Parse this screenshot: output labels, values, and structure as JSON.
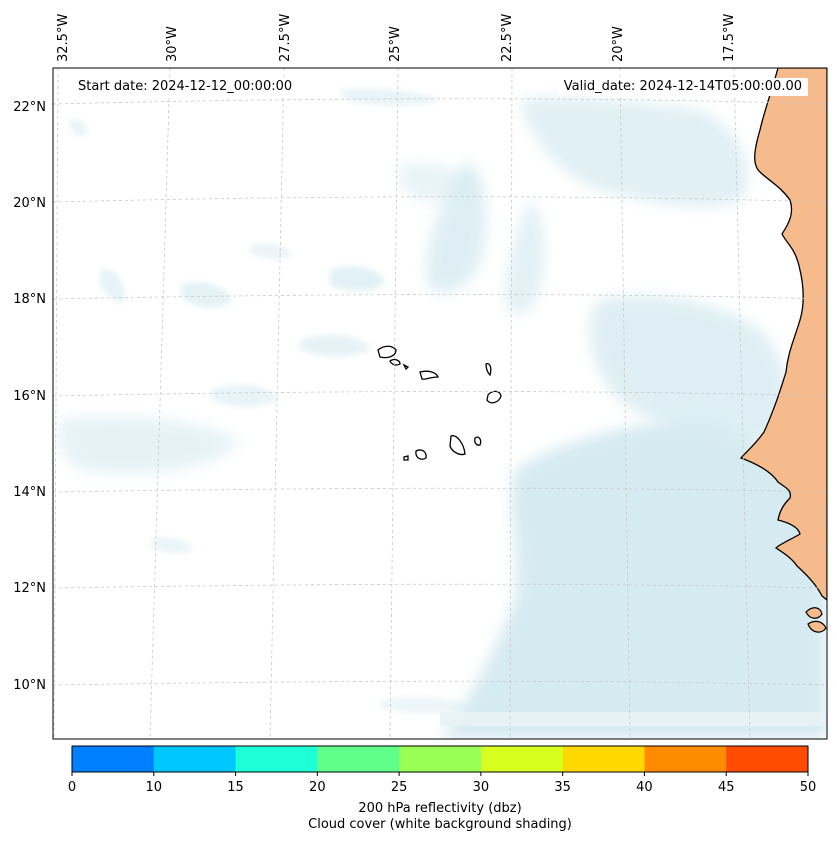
{
  "map": {
    "start_date_text": "Start date: 2024-12-12_00:00:00",
    "valid_date_text": "Valid_date: 2024-12-14T05:00:00.00",
    "extent": {
      "lon_min": -33.0,
      "lon_max": -15.7,
      "lat_min": 8.9,
      "lat_max": 22.8
    },
    "longitude_labels": [
      "32.5°W",
      "30°W",
      "27.5°W",
      "25°W",
      "22.5°W",
      "20°W",
      "17.5°W"
    ],
    "latitude_labels": [
      "22°N",
      "20°N",
      "18°N",
      "16°N",
      "14°N",
      "12°N",
      "10°N"
    ],
    "gridlines": true,
    "colors": {
      "land": "#f5bb8c",
      "cloud": "#cfe7ef",
      "coastline": "#000000",
      "grid": "#c8c8c8"
    }
  },
  "colorbar": {
    "ticks": [
      "0",
      "10",
      "15",
      "20",
      "25",
      "30",
      "35",
      "40",
      "45",
      "50"
    ],
    "colors": [
      "#0080ff",
      "#00c8ff",
      "#1effd8",
      "#5fff8a",
      "#99ff55",
      "#d7ff1f",
      "#ffd800",
      "#ff8c00",
      "#ff4c00"
    ],
    "label_line1": "200 hPa reflectivity (dbz)",
    "label_line2": "Cloud cover (white background shading)"
  }
}
